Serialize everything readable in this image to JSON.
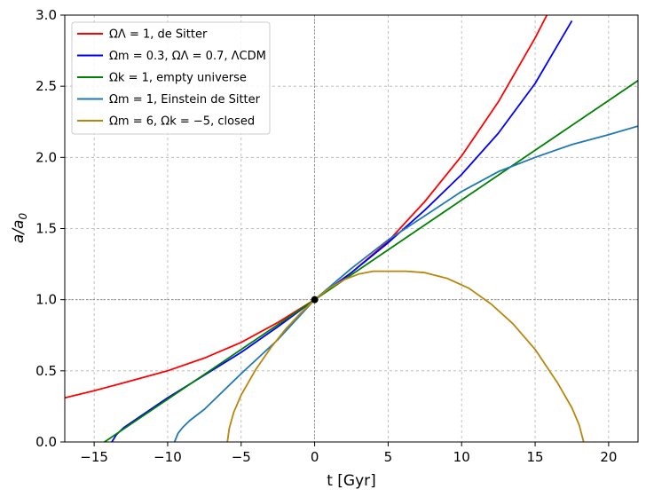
{
  "chart_data": {
    "type": "line",
    "xlabel": "t [Gyr]",
    "ylabel_main": "a/a",
    "ylabel_sub": "0",
    "xlim": [
      -17,
      22
    ],
    "ylim": [
      0,
      3
    ],
    "x_ticks": [
      -15,
      -10,
      -5,
      0,
      5,
      10,
      15,
      20
    ],
    "x_tick_labels": [
      "−15",
      "−10",
      "−5",
      "0",
      "5",
      "10",
      "15",
      "20"
    ],
    "y_ticks": [
      0.0,
      0.5,
      1.0,
      1.5,
      2.0,
      2.5,
      3.0
    ],
    "y_tick_labels": [
      "0.0",
      "0.5",
      "1.0",
      "1.5",
      "2.0",
      "2.5",
      "3.0"
    ],
    "grid": true,
    "reference_lines": {
      "x": 0,
      "y": 1
    },
    "marker": {
      "x": 0,
      "y": 1
    },
    "legend_position": "top-left",
    "series": [
      {
        "name": "ΩΛ = 1, de Sitter",
        "color": "#ff0000",
        "x": [
          -17,
          -15,
          -12.5,
          -10,
          -7.5,
          -5,
          -2.5,
          0,
          2.5,
          5,
          7.5,
          10,
          12.5,
          15,
          15.8
        ],
        "y": [
          0.31,
          0.36,
          0.43,
          0.5,
          0.59,
          0.7,
          0.84,
          1.0,
          1.19,
          1.41,
          1.69,
          2.01,
          2.39,
          2.84,
          3.0
        ]
      },
      {
        "name": "Ωm = 0.3, ΩΛ = 0.7, ΛCDM",
        "color": "#0000ff",
        "x": [
          -13.8,
          -13.5,
          -13,
          -12,
          -10,
          -7.5,
          -5,
          -2.5,
          0,
          2.5,
          5,
          7.5,
          10,
          12.5,
          15,
          17.5
        ],
        "y": [
          0.0,
          0.05,
          0.1,
          0.17,
          0.31,
          0.47,
          0.63,
          0.81,
          1.0,
          1.19,
          1.4,
          1.63,
          1.88,
          2.17,
          2.52,
          2.96
        ]
      },
      {
        "name": "Ωk = 1, empty universe",
        "color": "#008000",
        "x": [
          -14.3,
          -10,
          -5,
          0,
          5,
          10,
          15,
          20,
          22
        ],
        "y": [
          0.0,
          0.3,
          0.65,
          1.0,
          1.35,
          1.7,
          2.05,
          2.4,
          2.54
        ]
      },
      {
        "name": "Ωm = 1, Einstein de Sitter",
        "color": "#1f77b4",
        "x": [
          -9.53,
          -9.3,
          -9,
          -8.5,
          -7.5,
          -6.5,
          -5,
          -2.5,
          0,
          2.5,
          5,
          7.5,
          10,
          12.5,
          15,
          17.5,
          20,
          22
        ],
        "y": [
          0.0,
          0.06,
          0.1,
          0.15,
          0.23,
          0.33,
          0.48,
          0.72,
          1.0,
          1.22,
          1.42,
          1.59,
          1.76,
          1.9,
          2.0,
          2.09,
          2.16,
          2.22
        ]
      },
      {
        "name": "Ωm = 6, Ωk = −5, closed",
        "color": "#b8860b",
        "x": [
          -5.94,
          -5.8,
          -5.5,
          -5,
          -4,
          -3,
          -2,
          -1,
          0,
          1,
          2,
          3,
          4,
          5,
          6.2,
          7.5,
          9,
          10.5,
          12,
          13.5,
          15,
          16.5,
          17.5,
          18.0,
          18.3
        ],
        "y": [
          0.0,
          0.1,
          0.21,
          0.33,
          0.51,
          0.66,
          0.79,
          0.9,
          1.0,
          1.08,
          1.14,
          1.18,
          1.2,
          1.2,
          1.2,
          1.19,
          1.15,
          1.08,
          0.97,
          0.83,
          0.65,
          0.42,
          0.24,
          0.12,
          0.0
        ]
      }
    ]
  }
}
